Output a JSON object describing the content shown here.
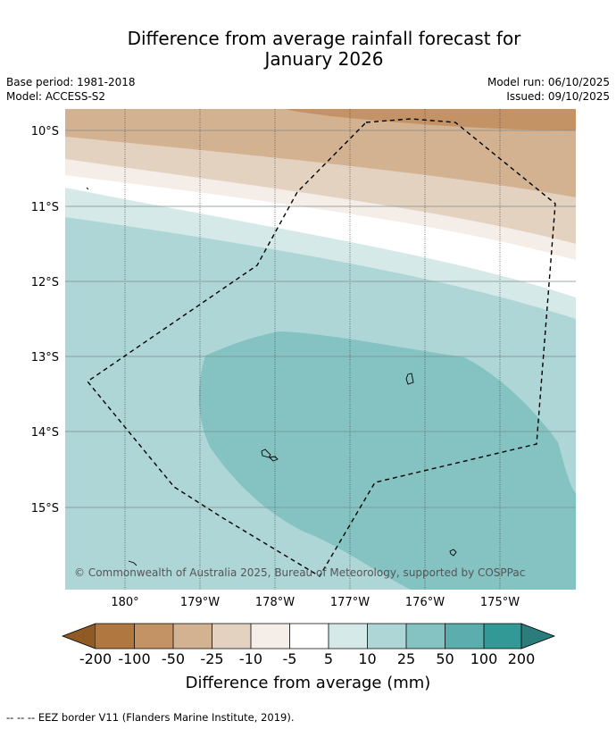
{
  "title": {
    "line1": "Difference from average rainfall forecast for",
    "line2": "January 2026"
  },
  "meta": {
    "base_period": "Base period: 1981-2018",
    "model": "Model: ACCESS-S2",
    "model_run": "Model run: 06/10/2025",
    "issued": "Issued: 09/10/2025"
  },
  "map": {
    "lat_labels": [
      "10°S",
      "11°S",
      "12°S",
      "13°S",
      "14°S",
      "15°S"
    ],
    "lon_labels": [
      "180°",
      "179°W",
      "178°W",
      "177°W",
      "176°W",
      "175°W"
    ],
    "copyright": "© Commonwealth of Australia 2025, Bureau of Meteorology, supported by COSPPac"
  },
  "legend": {
    "title": "Difference from average (mm)",
    "ticks": [
      "-200",
      "-100",
      "-50",
      "-25",
      "-10",
      "-5",
      "5",
      "10",
      "25",
      "50",
      "100",
      "200"
    ],
    "colors": {
      "lt_-200": "#8f5a24",
      "-200_-100": "#b07840",
      "-100_-50": "#c39366",
      "-50_-25": "#d3b292",
      "-25_-10": "#e4d2c1",
      "-10_-5": "#f5ede7",
      "-5_5": "#ffffff",
      "5_10": "#d5e9e9",
      "10_25": "#aed6d6",
      "25_50": "#84c3c2",
      "50_100": "#5cadad",
      "100_200": "#339996",
      "gt_200": "#2a7d7b"
    }
  },
  "footnote": "--  --  -- EEZ border V11 (Flanders Marine Institute, 2019)."
}
